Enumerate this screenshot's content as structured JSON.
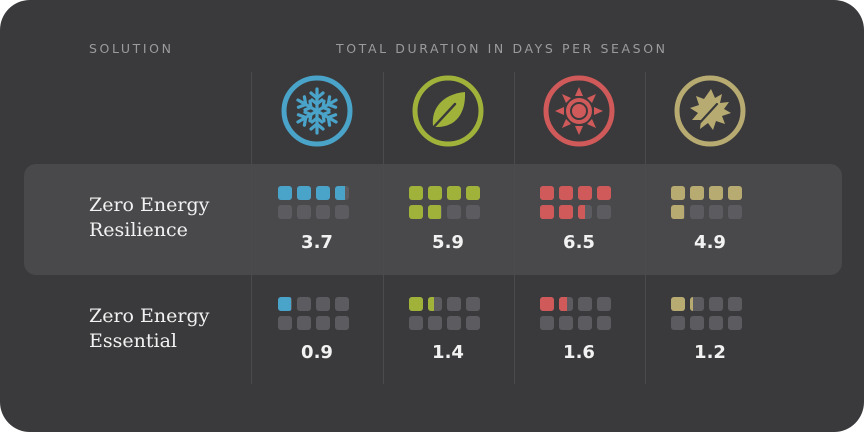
{
  "header": {
    "solution_label": "SOLUTION",
    "duration_label": "TOTAL DURATION IN DAYS PER SEASON"
  },
  "colors": {
    "winter": "#4aa3c9",
    "spring": "#a0b23a",
    "summer": "#d05a5a",
    "autumn": "#b8ab72",
    "empty": "#5c5c60"
  },
  "seasons": [
    {
      "key": "winter",
      "icon": "snowflake-icon"
    },
    {
      "key": "spring",
      "icon": "leaf-icon"
    },
    {
      "key": "summer",
      "icon": "sun-icon"
    },
    {
      "key": "autumn",
      "icon": "maple-leaf-icon"
    }
  ],
  "rows": [
    {
      "label_line1": "Zero Energy",
      "label_line2": "Resilience",
      "highlighted": true
    },
    {
      "label_line1": "Zero Energy",
      "label_line2": "Essential",
      "highlighted": false
    }
  ],
  "chart_data": {
    "type": "table",
    "units_per_square": 1,
    "squares_per_cell": 8,
    "series": [
      {
        "name": "Zero Energy Resilience",
        "values": [
          3.7,
          5.9,
          6.5,
          4.9
        ]
      },
      {
        "name": "Zero Energy Essential",
        "values": [
          0.9,
          1.4,
          1.6,
          1.2
        ]
      }
    ],
    "value_labels": [
      [
        "3.7",
        "5.9",
        "6.5",
        "4.9"
      ],
      [
        "0.9",
        "1.4",
        "1.6",
        "1.2"
      ]
    ]
  }
}
